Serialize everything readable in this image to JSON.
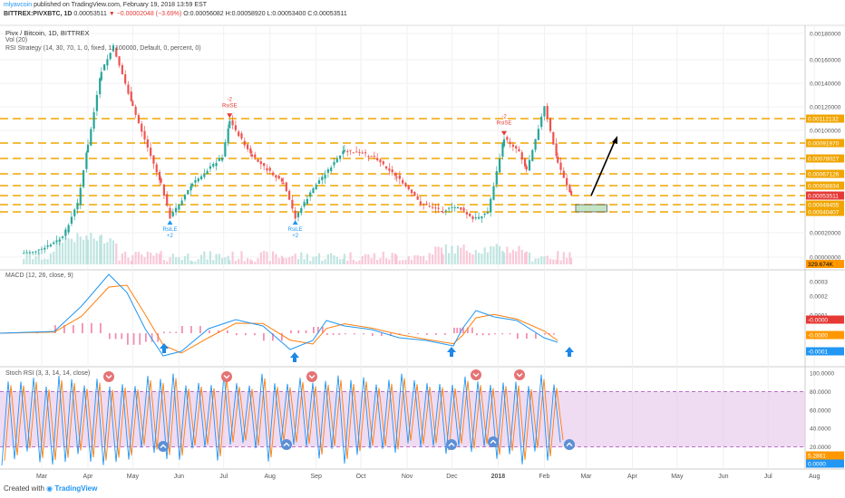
{
  "header": {
    "publisher": "mlyavcoin",
    "published_text": "published on TradingView.com, February 19, 2018 13:59 EST",
    "symbol": "BITTREX:PIVXBTC, 1D",
    "last": "0.00053511",
    "change": "▼ −0.00002048 (−3.69%)",
    "ohlc": "O:0.00056082 H:0.00058920 L:0.00053400 C:0.00053511"
  },
  "legend": {
    "title": "Pivx / Bitcoin, 1D, BITTREX",
    "vol": "Vol (20)",
    "rsi_strategy": "RSI Strategy (14, 30, 70, 1, 0, fixed, 1, 100000, Default, 0, percent, 0)",
    "macd": "MACD (12, 26, close, 9)",
    "stoch": "Stoch RSI (3, 3, 14, 14, close)"
  },
  "footer": {
    "created_with": "Created with",
    "brand": "TradingView"
  },
  "colors": {
    "up": "#26a69a",
    "down": "#ef5350",
    "level": "#f0a500",
    "macd": "#2196f3",
    "signal": "#ff7f0e",
    "hist": "#f48fb1",
    "stoch_band": "#e1bee7"
  },
  "chart_data": [
    {
      "type": "line",
      "name": "price",
      "title": "Pivx / Bitcoin, 1D, BITTREX",
      "x_ticks": [
        "Mar",
        "Apr",
        "May",
        "Jun",
        "Jul",
        "Aug",
        "Sep",
        "Oct",
        "Nov",
        "Dec",
        "2018",
        "Feb",
        "Mar",
        "Apr",
        "May",
        "Jun",
        "Jul",
        "Aug"
      ],
      "y_ticks": [
        "0.00180000",
        "0.00160000",
        "0.00140000",
        "0.00120000",
        "0.00100000",
        "0.00020000",
        "0.00000000"
      ],
      "ylim": [
        0,
        0.0019
      ],
      "x": [
        "Feb 15",
        "Mar 1",
        "Mar 15",
        "Mar 25",
        "Apr 1",
        "Apr 10",
        "Apr 18",
        "May 1",
        "May 20",
        "May 26",
        "Jun 10",
        "Jun 30",
        "Jul 5",
        "Jul 20",
        "Aug 10",
        "Aug 18",
        "Sep 1",
        "Sep 20",
        "Oct 10",
        "Oct 25",
        "Nov 10",
        "Nov 25",
        "Dec 5",
        "Dec 15",
        "Dec 25",
        "Jan 5",
        "Jan 15",
        "Jan 20",
        "Feb 1",
        "Feb 10",
        "Feb 19"
      ],
      "values": [
        3e-05,
        6e-05,
        0.00016,
        0.0005,
        0.0009,
        0.0015,
        0.0017,
        0.0012,
        0.0006,
        0.00035,
        0.0006,
        0.0008,
        0.0011,
        0.0008,
        0.0006,
        0.00035,
        0.0006,
        0.00085,
        0.0008,
        0.00065,
        0.0005,
        0.00042,
        0.00047,
        0.00033,
        0.0004,
        0.00095,
        0.00085,
        0.0007,
        0.0012,
        0.00075,
        0.00053511
      ],
      "levels": [
        {
          "value": 0.00112132,
          "label": "0.00112132"
        },
        {
          "value": 0.0009197,
          "label": "0.00091970"
        },
        {
          "value": 0.00078027,
          "label": "0.00078027"
        },
        {
          "value": 0.00067126,
          "label": "0.00067126"
        },
        {
          "value": 0.00058834,
          "label": "0.00058834"
        },
        {
          "value": 0.00053511,
          "label": "0.00053511"
        },
        {
          "value": 0.00049455,
          "label": "0.00049455"
        },
        {
          "value": 0.00040407,
          "label": "0.00040407"
        }
      ],
      "volume_label": "329.674K",
      "signals": [
        {
          "x": "May 26",
          "label_top": "RsiLE",
          "label_bottom": "+2",
          "kind": "buy"
        },
        {
          "x": "Jul 5",
          "label_top": "-2",
          "label_bottom": "RsiSE",
          "kind": "sell"
        },
        {
          "x": "Aug 18",
          "label_top": "RsiLE",
          "label_bottom": "+2",
          "kind": "buy"
        },
        {
          "x": "Jan 5",
          "label_top": "-2",
          "label_bottom": "RsiSE",
          "kind": "sell"
        }
      ],
      "target_box": {
        "x_start": "Feb 22",
        "x_end": "Mar 15",
        "y_low": 0.00040407,
        "y_high": 0.00049455
      }
    },
    {
      "type": "line",
      "name": "macd",
      "title": "MACD (12, 26, close, 9)",
      "y_ticks": [
        "0.0003",
        "0.0002",
        "0.0001"
      ],
      "value_labels": [
        "-0.0000",
        "-0.0000",
        "-0.0001"
      ]
    },
    {
      "type": "line",
      "name": "stoch_rsi",
      "title": "Stoch RSI (3, 3, 14, 14, close)",
      "y_ticks": [
        "100.0000",
        "80.0000",
        "60.0000",
        "40.0000",
        "20.0000"
      ],
      "bands": [
        20,
        80
      ],
      "value_labels": [
        "5.2861",
        "0.0000"
      ]
    }
  ]
}
